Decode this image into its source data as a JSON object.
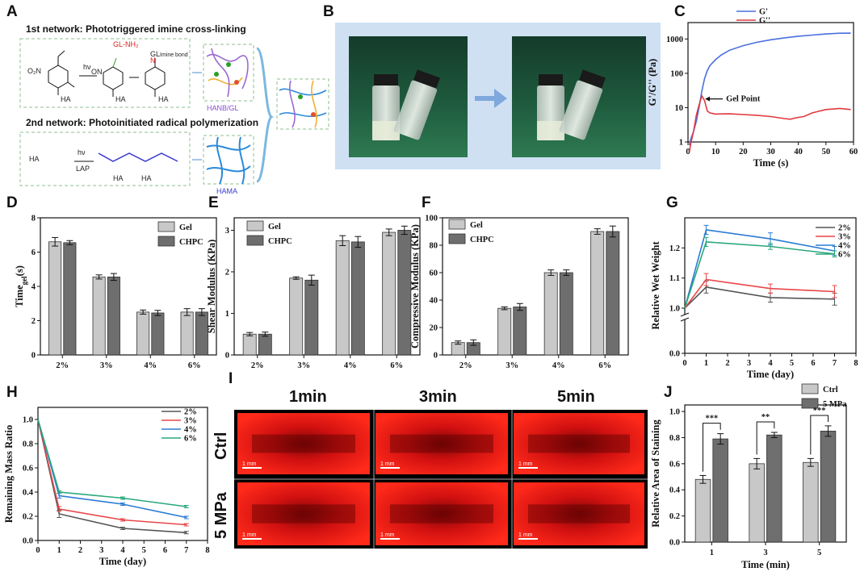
{
  "panel_labels": [
    "A",
    "B",
    "C",
    "D",
    "E",
    "F",
    "G",
    "H",
    "I",
    "J"
  ],
  "colors": {
    "gel": "#c8c8c8",
    "chpc": "#6e6e6e",
    "s2": "#555555",
    "s3": "#e8474a",
    "s4": "#2b7bd4",
    "s6": "#2aa87a",
    "gprime": "#4a6fe0",
    "gdouble": "#e0393e",
    "frame": "#8fbf8f",
    "photo_bg": "#cfe0f2",
    "stain": "#e01010"
  },
  "schematic": {
    "title1": "1st network: Phototriggered imine cross-linking",
    "title2": "2nd network: Photoinitiated radical polymerization",
    "hv": "hν",
    "lap": "LAP",
    "gl_nh2": "GL-NH₂",
    "imine_bond": "Imine bond",
    "hanb_gl": "HANB/GL",
    "hama": "HAMA",
    "ha": "HA",
    "gl": "GL",
    "no2": "O₂N",
    "on": "ON",
    "n": "N",
    "o": "O"
  },
  "images": {
    "col_labels": [
      "1min",
      "3min",
      "5min"
    ],
    "row_labels": [
      "Ctrl",
      "5 MPa"
    ],
    "scale": "1 mm"
  },
  "chart_data": [
    {
      "panel": "C",
      "type": "line",
      "xlabel": "Time (s)",
      "ylabel": "G'/G'' (Pa)",
      "xlim": [
        0,
        60
      ],
      "ylim": [
        1,
        3000
      ],
      "yscale": "log",
      "xticks": [
        0,
        10,
        20,
        30,
        40,
        50,
        60
      ],
      "yticks": [
        1,
        10,
        100,
        1000
      ],
      "annotation": "Gel Point",
      "series": [
        {
          "name": "G'",
          "x": [
            0.5,
            1,
            2,
            3,
            4,
            5,
            6,
            7,
            8,
            10,
            12,
            15,
            20,
            25,
            30,
            35,
            40,
            45,
            50,
            55,
            59
          ],
          "y": [
            0.8,
            1.2,
            2,
            4,
            10,
            30,
            70,
            120,
            170,
            250,
            340,
            470,
            640,
            800,
            950,
            1080,
            1200,
            1300,
            1400,
            1470,
            1480
          ]
        },
        {
          "name": "G''",
          "x": [
            0.5,
            1,
            2,
            3,
            4,
            5,
            6,
            7,
            8,
            10,
            15,
            20,
            25,
            30,
            35,
            37,
            40,
            42,
            45,
            50,
            55,
            59
          ],
          "y": [
            0.5,
            0.9,
            2,
            6,
            12,
            22,
            16,
            8,
            7,
            6.5,
            6.6,
            6.3,
            6,
            5.5,
            4.8,
            4.6,
            5.2,
            5.5,
            7,
            8.8,
            9.5,
            8.8
          ]
        }
      ]
    },
    {
      "panel": "D",
      "type": "bar",
      "categories": [
        "2%",
        "3%",
        "4%",
        "6%"
      ],
      "ylabel": "Time_gel(s)",
      "ylim": [
        0,
        8
      ],
      "yticks": [
        0,
        2,
        4,
        6,
        8
      ],
      "series": [
        {
          "name": "Gel",
          "values": [
            6.6,
            4.55,
            2.5,
            2.5
          ],
          "errors": [
            0.25,
            0.12,
            0.12,
            0.2
          ]
        },
        {
          "name": "CHPC",
          "values": [
            6.55,
            4.55,
            2.45,
            2.5
          ],
          "errors": [
            0.12,
            0.2,
            0.15,
            0.2
          ]
        }
      ]
    },
    {
      "panel": "E",
      "type": "bar",
      "categories": [
        "2%",
        "3%",
        "4%",
        "6%"
      ],
      "ylabel": "Shear Modulus (KPa)",
      "ylim": [
        0,
        3.3
      ],
      "yticks": [
        0,
        1,
        2,
        3
      ],
      "series": [
        {
          "name": "Gel",
          "values": [
            0.5,
            1.85,
            2.75,
            2.95
          ],
          "errors": [
            0.04,
            0.03,
            0.12,
            0.08
          ]
        },
        {
          "name": "CHPC",
          "values": [
            0.5,
            1.8,
            2.72,
            3.0
          ],
          "errors": [
            0.05,
            0.12,
            0.13,
            0.1
          ]
        }
      ]
    },
    {
      "panel": "F",
      "type": "bar",
      "categories": [
        "2%",
        "3%",
        "4%",
        "6%"
      ],
      "ylabel": "Compressive Modulus (KPa)",
      "ylim": [
        0,
        100
      ],
      "yticks": [
        0,
        20,
        40,
        60,
        80,
        100
      ],
      "series": [
        {
          "name": "Gel",
          "values": [
            9,
            34,
            60,
            90
          ],
          "errors": [
            1.2,
            1,
            2,
            2
          ]
        },
        {
          "name": "CHPC",
          "values": [
            9,
            35,
            60,
            90
          ],
          "errors": [
            2,
            2.5,
            2,
            4
          ]
        }
      ]
    },
    {
      "panel": "G",
      "type": "line",
      "xlabel": "Time (day)",
      "ylabel": "Relative Wet Weight",
      "xlim": [
        0,
        8
      ],
      "ylim": [
        1.0,
        1.3
      ],
      "xticks": [
        0,
        1,
        2,
        3,
        4,
        5,
        6,
        7,
        8
      ],
      "yticks": [
        1.0,
        1.1,
        1.2
      ],
      "lower_segment_ticks": [
        0.0
      ],
      "series": [
        {
          "name": "2%",
          "x": [
            0,
            1,
            4,
            7
          ],
          "y": [
            1.0,
            1.07,
            1.035,
            1.03
          ],
          "errors": [
            0,
            0.02,
            0.015,
            0.02
          ]
        },
        {
          "name": "3%",
          "x": [
            0,
            1,
            4,
            7
          ],
          "y": [
            1.0,
            1.095,
            1.065,
            1.055
          ],
          "errors": [
            0,
            0.02,
            0.015,
            0.02
          ]
        },
        {
          "name": "4%",
          "x": [
            0,
            1,
            4,
            7
          ],
          "y": [
            1.0,
            1.26,
            1.23,
            1.19
          ],
          "errors": [
            0,
            0.015,
            0.02,
            0.015
          ]
        },
        {
          "name": "6%",
          "x": [
            0,
            1,
            4,
            7
          ],
          "y": [
            1.0,
            1.22,
            1.205,
            1.18
          ],
          "errors": [
            0,
            0.015,
            0.01,
            0.01
          ]
        }
      ]
    },
    {
      "panel": "H",
      "type": "line",
      "xlabel": "Time (day)",
      "ylabel": "Remaining Mass Ratio",
      "xlim": [
        0,
        8
      ],
      "ylim": [
        0,
        1.1
      ],
      "xticks": [
        0,
        1,
        2,
        3,
        4,
        5,
        6,
        7,
        8
      ],
      "yticks": [
        0.0,
        0.2,
        0.4,
        0.6,
        0.8,
        1.0
      ],
      "series": [
        {
          "name": "2%",
          "x": [
            0,
            1,
            4,
            7
          ],
          "y": [
            1.0,
            0.22,
            0.1,
            0.065
          ],
          "errors": [
            0,
            0.03,
            0.01,
            0.01
          ]
        },
        {
          "name": "3%",
          "x": [
            0,
            1,
            4,
            7
          ],
          "y": [
            1.0,
            0.26,
            0.17,
            0.13
          ],
          "errors": [
            0,
            0.02,
            0.01,
            0.01
          ]
        },
        {
          "name": "4%",
          "x": [
            0,
            1,
            4,
            7
          ],
          "y": [
            1.0,
            0.37,
            0.3,
            0.19
          ],
          "errors": [
            0,
            0.02,
            0.01,
            0.01
          ]
        },
        {
          "name": "6%",
          "x": [
            0,
            1,
            4,
            7
          ],
          "y": [
            1.0,
            0.4,
            0.35,
            0.28
          ],
          "errors": [
            0,
            0.01,
            0.01,
            0.01
          ]
        }
      ]
    },
    {
      "panel": "J",
      "type": "bar",
      "categories": [
        "1",
        "3",
        "5"
      ],
      "xlabel": "Time (min)",
      "ylabel": "Relative Area of Staining",
      "ylim": [
        0,
        1.05
      ],
      "yticks": [
        0.0,
        0.2,
        0.4,
        0.6,
        0.8,
        1.0
      ],
      "significance": [
        "***",
        "**",
        "***"
      ],
      "series": [
        {
          "name": "Ctrl",
          "values": [
            0.48,
            0.6,
            0.61
          ],
          "errors": [
            0.03,
            0.04,
            0.03
          ]
        },
        {
          "name": "5 MPa",
          "values": [
            0.79,
            0.82,
            0.85
          ],
          "errors": [
            0.04,
            0.02,
            0.04
          ]
        }
      ]
    }
  ]
}
